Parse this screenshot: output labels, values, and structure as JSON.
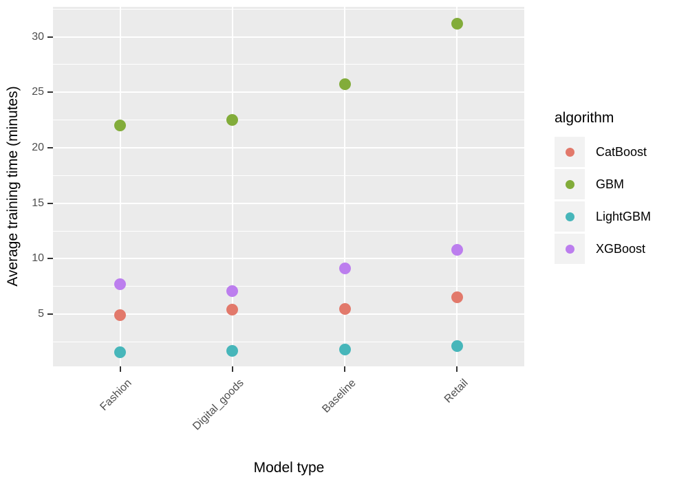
{
  "chart_data": {
    "type": "scatter",
    "title": "",
    "xlabel": "Model type",
    "ylabel": "Average training time (minutes)",
    "legend_title": "algorithm",
    "legend_position": "right",
    "grid": true,
    "categories": [
      "Fashion",
      "Digital_goods",
      "Baseline",
      "Retail"
    ],
    "y_ticks": [
      5,
      10,
      15,
      20,
      25,
      30
    ],
    "y_minor_ticks": [
      2.5,
      7.5,
      12.5,
      17.5,
      22.5,
      27.5,
      32.5
    ],
    "ylim": [
      0.3,
      32.7
    ],
    "series": [
      {
        "name": "CatBoost",
        "color": "#E2796B",
        "values": [
          4.9,
          5.4,
          5.5,
          6.5
        ]
      },
      {
        "name": "GBM",
        "color": "#82AC3A",
        "values": [
          22.0,
          22.5,
          25.7,
          31.2
        ]
      },
      {
        "name": "LightGBM",
        "color": "#47B6BA",
        "values": [
          1.6,
          1.7,
          1.8,
          2.1
        ]
      },
      {
        "name": "XGBoost",
        "color": "#BC7EEE",
        "values": [
          7.7,
          7.1,
          9.1,
          10.8
        ]
      }
    ],
    "colors": {
      "panel_background": "#EBEBEB",
      "gridline": "#FFFFFF",
      "axis_text": "#4D4D4D",
      "tick_mark": "#333333",
      "legend_key_background": "#F2F2F2"
    }
  }
}
